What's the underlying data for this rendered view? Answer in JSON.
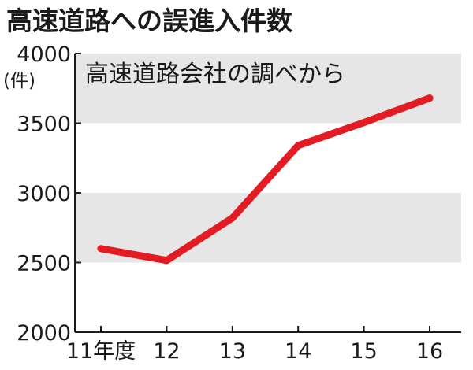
{
  "colors": {
    "line": "#e31b23",
    "band": "#e6e6e6",
    "axis": "#1a1a1a"
  },
  "chart_data": {
    "type": "line",
    "title": "高速道路への誤進入件数",
    "annotation": "高速道路会社の調べから",
    "ylabel": "(件)",
    "xlabel": "",
    "categories": [
      "11年度",
      "12",
      "13",
      "14",
      "15",
      "16"
    ],
    "series": [
      {
        "values": [
          2600,
          2515,
          2820,
          3340,
          3505,
          3680
        ]
      }
    ],
    "ylim": [
      2000,
      4000
    ],
    "yticks": [
      "2000",
      "2500",
      "3000",
      "3500",
      "4000"
    ],
    "ytick_values": [
      2000,
      2500,
      3000,
      3500,
      4000
    ],
    "background_bands": [
      [
        2500,
        3000
      ],
      [
        3500,
        4000
      ]
    ],
    "grid": false,
    "legend": "none"
  }
}
